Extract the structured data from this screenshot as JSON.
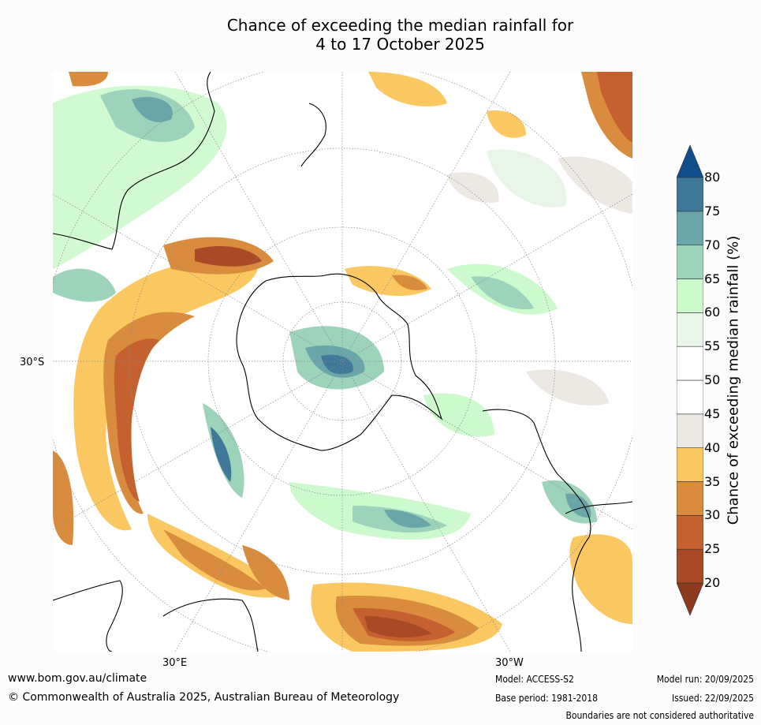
{
  "title_line1": "Chance of exceeding the median rainfall for",
  "title_line2": "4 to 17 October 2025",
  "map": {
    "projection": "south-polar-stereographic",
    "lat_label": "30°S",
    "lon_labels": [
      "30°E",
      "30°W"
    ],
    "land_outlines": [
      "Antarctica",
      "Australia",
      "New Zealand",
      "South America",
      "Africa"
    ]
  },
  "colorbar": {
    "label": "Chance of exceeding median rainfall (%)",
    "ticks": [
      "20",
      "25",
      "30",
      "35",
      "40",
      "45",
      "50",
      "55",
      "60",
      "65",
      "70",
      "75",
      "80"
    ],
    "colors_low_to_high": [
      "#8e3a1e",
      "#a94a27",
      "#c5612f",
      "#d98c3d",
      "#fbc760",
      "#ece9e5",
      "#ffffff",
      "#ffffff",
      "#e9f5e9",
      "#ccfacc",
      "#9dd2bb",
      "#6aa5a9",
      "#3f7898",
      "#104e8b"
    ],
    "extend": "both"
  },
  "footer": {
    "url": "www.bom.gov.au/climate",
    "copyright": "© Commonwealth of Australia 2025, Australian Bureau of Meteorology",
    "model": "Model: ACCESS-S2",
    "base_period": "Base period: 1981-2018",
    "model_run": "Model run: 20/09/2025",
    "issued": "Issued: 22/09/2025",
    "disclaimer": "Boundaries are not considered authoritative"
  }
}
